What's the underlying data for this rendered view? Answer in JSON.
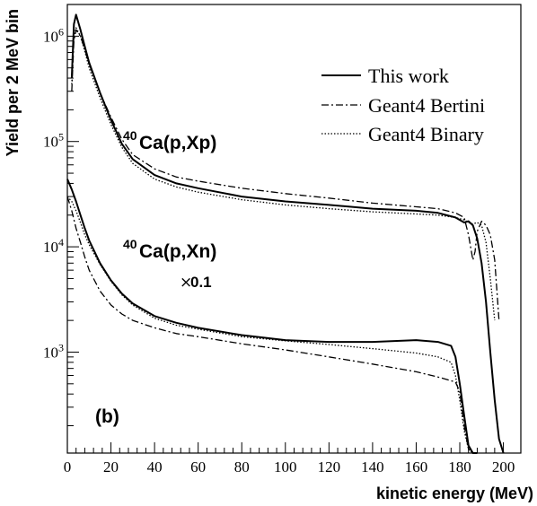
{
  "chart_data": {
    "type": "line",
    "xlabel": "kinetic energy (MeV)",
    "ylabel": "Yield per 2 MeV bin",
    "xlim": [
      0,
      208
    ],
    "ylim": [
      110,
      2000000
    ],
    "y_scale": "log",
    "x_ticks": [
      "0",
      "20",
      "40",
      "60",
      "80",
      "100",
      "120",
      "140",
      "160",
      "180",
      "200"
    ],
    "y_ticks": [
      {
        "value": 1000,
        "base": "10",
        "exp": "3"
      },
      {
        "value": 10000,
        "base": "10",
        "exp": "4"
      },
      {
        "value": 100000,
        "base": "10",
        "exp": "5"
      },
      {
        "value": 1000000,
        "base": "10",
        "exp": "6"
      }
    ],
    "legend": {
      "placement": "top-right",
      "entries": [
        {
          "label": "This work",
          "style": "solid"
        },
        {
          "label": "Geant4 Bertini",
          "style": "dash-dot"
        },
        {
          "label": "Geant4 Binary",
          "style": "dotted"
        }
      ]
    },
    "annotations": {
      "xp_reaction": {
        "sup": "40",
        "text": "Ca(p,Xp)"
      },
      "xn_reaction": {
        "sup": "40",
        "text": "Ca(p,Xn)"
      },
      "xn_scale": {
        "times": "×",
        "value": "0.1"
      },
      "panel": "(b)"
    },
    "series": [
      {
        "reaction": "Ca(p,Xp)",
        "style": "solid",
        "x": [
          2,
          3,
          4,
          6,
          8,
          10,
          15,
          20,
          25,
          30,
          40,
          50,
          60,
          80,
          100,
          120,
          140,
          160,
          170,
          178,
          182,
          184,
          186,
          188,
          190,
          192,
          194,
          196,
          198,
          200
        ],
        "y": [
          400000,
          1300000,
          1600000,
          1150000,
          800000,
          560000,
          290000,
          160000,
          95000,
          68000,
          48000,
          40000,
          36000,
          30000,
          27000,
          25000,
          23000,
          22000,
          21000,
          19000,
          17000,
          17500,
          16000,
          12000,
          7000,
          3000,
          1000,
          350,
          150,
          110
        ]
      },
      {
        "reaction": "Ca(p,Xp)",
        "style": "dash-dot",
        "x": [
          2,
          3,
          4,
          6,
          8,
          10,
          15,
          20,
          25,
          30,
          40,
          50,
          60,
          80,
          100,
          120,
          140,
          160,
          170,
          178,
          182,
          184,
          186,
          187,
          188,
          190,
          192,
          194,
          196,
          198
        ],
        "y": [
          300000,
          900000,
          1150000,
          1000000,
          750000,
          540000,
          290000,
          170000,
          105000,
          75000,
          55000,
          46000,
          42000,
          36000,
          32000,
          29000,
          26000,
          24000,
          23000,
          21000,
          19000,
          13000,
          7500,
          9000,
          14000,
          17500,
          16000,
          13000,
          7500,
          2000
        ]
      },
      {
        "reaction": "Ca(p,Xp)",
        "style": "dotted",
        "x": [
          2,
          3,
          4,
          6,
          8,
          10,
          15,
          20,
          25,
          30,
          40,
          50,
          60,
          80,
          100,
          120,
          140,
          160,
          170,
          178,
          182,
          184,
          186,
          188,
          190,
          192,
          194,
          196
        ],
        "y": [
          350000,
          1000000,
          1200000,
          1000000,
          720000,
          500000,
          260000,
          145000,
          88000,
          62000,
          44000,
          37000,
          33000,
          28000,
          25000,
          23000,
          21500,
          20500,
          20000,
          19000,
          18000,
          17000,
          16500,
          17000,
          16000,
          11000,
          5000,
          2000
        ]
      },
      {
        "reaction": "Ca(p,Xn)",
        "style": "solid",
        "x": [
          0,
          2,
          4,
          6,
          8,
          10,
          15,
          20,
          25,
          30,
          40,
          50,
          60,
          80,
          100,
          120,
          140,
          160,
          170,
          176,
          178,
          180,
          182,
          184,
          186,
          188
        ],
        "y": [
          44000,
          35000,
          27000,
          20000,
          15000,
          11500,
          7000,
          4800,
          3600,
          2900,
          2200,
          1900,
          1700,
          1450,
          1300,
          1250,
          1250,
          1300,
          1250,
          1150,
          900,
          500,
          250,
          130,
          110,
          110
        ]
      },
      {
        "reaction": "Ca(p,Xn)",
        "style": "dash-dot",
        "x": [
          0,
          2,
          4,
          6,
          8,
          10,
          15,
          20,
          25,
          30,
          40,
          50,
          60,
          80,
          100,
          120,
          140,
          160,
          170,
          178,
          180,
          182,
          184,
          186
        ],
        "y": [
          30000,
          22000,
          15000,
          11000,
          8000,
          6000,
          3800,
          2800,
          2300,
          2000,
          1700,
          1500,
          1400,
          1200,
          1050,
          900,
          770,
          650,
          580,
          520,
          420,
          200,
          120,
          110
        ]
      },
      {
        "reaction": "Ca(p,Xn)",
        "style": "dotted",
        "x": [
          0,
          2,
          4,
          6,
          8,
          10,
          15,
          20,
          25,
          30,
          40,
          50,
          60,
          80,
          100,
          120,
          140,
          160,
          170,
          176,
          178,
          180,
          182,
          184,
          186
        ],
        "y": [
          30000,
          27000,
          22000,
          17000,
          13000,
          10500,
          6800,
          4700,
          3500,
          2800,
          2100,
          1800,
          1650,
          1400,
          1280,
          1180,
          1080,
          980,
          900,
          800,
          600,
          350,
          180,
          120,
          110
        ]
      }
    ]
  }
}
